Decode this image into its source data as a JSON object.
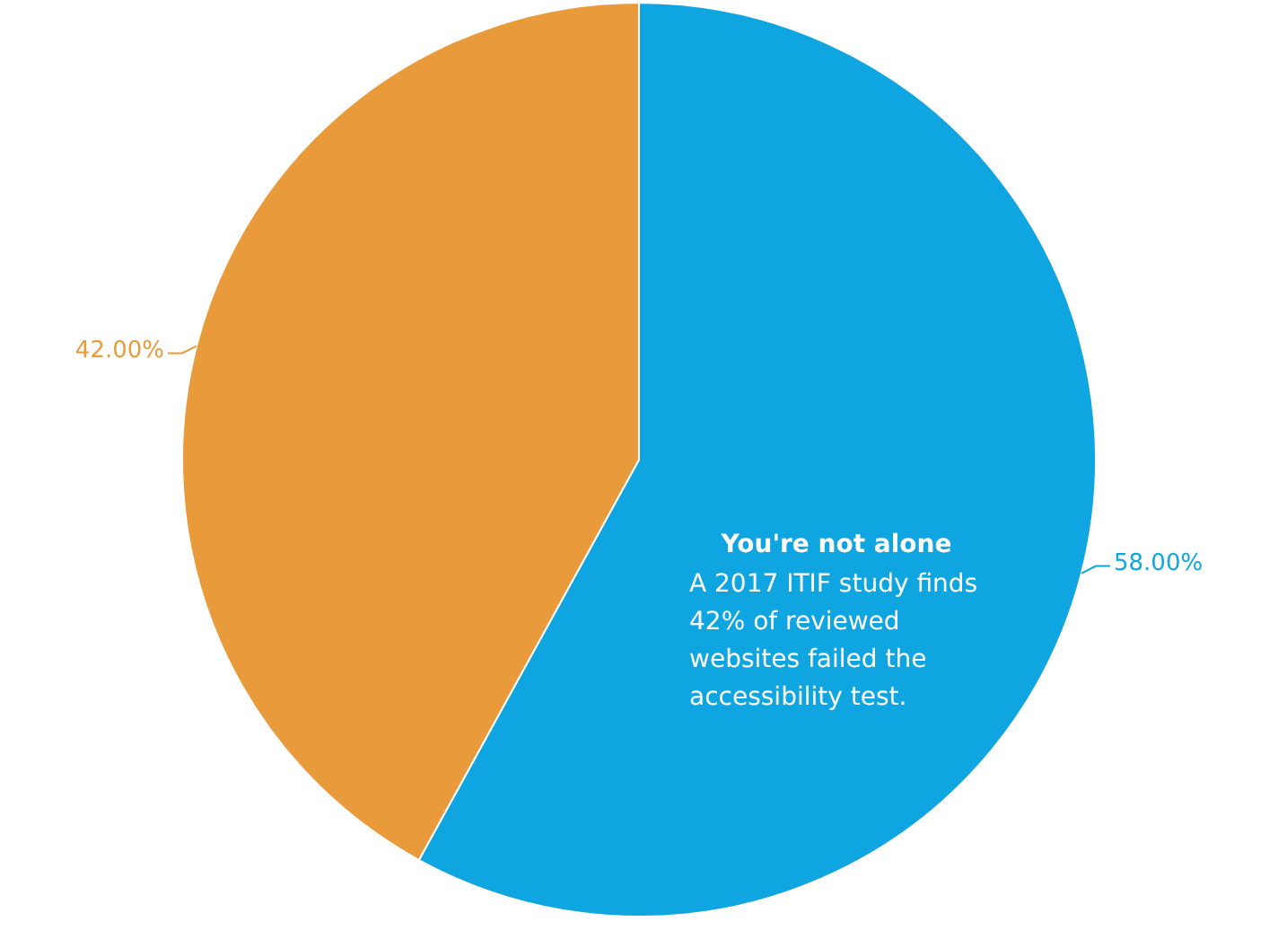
{
  "chart_data": {
    "type": "pie",
    "categories": [
      null,
      null
    ],
    "values": [
      58,
      42
    ],
    "colors": [
      "#0ea5e0",
      "#e99a3a"
    ],
    "value_labels": [
      "58.00%",
      "42.00%"
    ],
    "annotations": [
      "You're not alone",
      "A 2017 ITIF study finds 42% of reviewed websites failed the accessibility test."
    ],
    "legend": false
  }
}
